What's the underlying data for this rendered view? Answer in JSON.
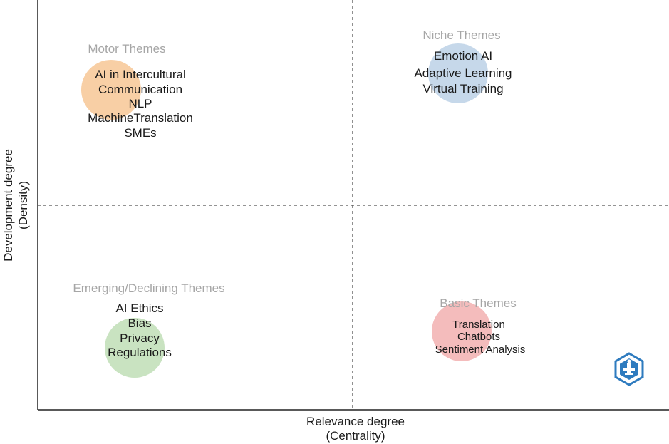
{
  "chart_data": {
    "type": "scatter",
    "title": "",
    "xlabel": [
      "Relevance degree",
      "(Centrality)"
    ],
    "ylabel": [
      "Development degree",
      "(Density)"
    ],
    "grid": false,
    "quadrants": [
      {
        "name": "Motor Themes",
        "position": "top-left",
        "color": "#f8cfa5",
        "terms": [
          "AI in Intercultural",
          "Communication",
          "NLP",
          "MachineTranslation",
          "SMEs"
        ]
      },
      {
        "name": "Niche Themes",
        "position": "top-right",
        "color": "#c6d8ea",
        "terms": [
          "Emotion AI",
          "Adaptive Learning",
          "Virtual Training"
        ]
      },
      {
        "name": "Emerging/Declining Themes",
        "position": "bottom-left",
        "color": "#c9e3c1",
        "terms": [
          "AI Ethics",
          "Bias",
          "Privacy",
          "Regulations"
        ]
      },
      {
        "name": "Basic Themes",
        "position": "bottom-right",
        "color": "#f4bcbc",
        "terms": [
          "Translation",
          "Chatbots",
          "Sentiment Analysis"
        ]
      }
    ]
  },
  "logo": {
    "name": "logo-icon",
    "color": "#2e7bbf"
  }
}
